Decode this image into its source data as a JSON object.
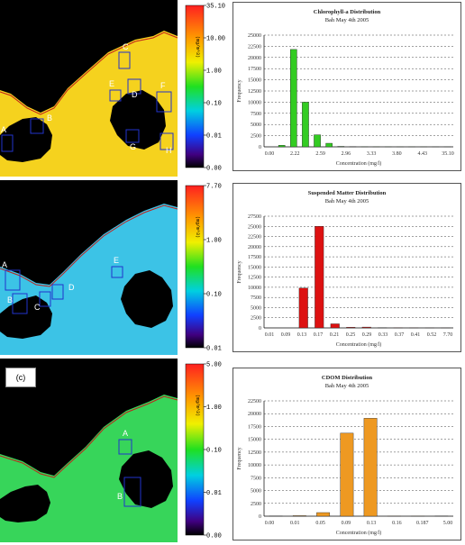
{
  "panel_label_c": "(c)",
  "maps": [
    {
      "fill": "#f5d21e",
      "colorbar_ticks": [
        "35.10",
        "10.00",
        "1.00",
        "0.10",
        "0.01",
        "0.00"
      ],
      "unit_label": "(mg/m^3)",
      "station_labels": [
        "A",
        "B",
        "C",
        "D",
        "E",
        "F",
        "G",
        "H"
      ]
    },
    {
      "fill": "#3cc3e6",
      "colorbar_ticks": [
        "7.70",
        "1.00",
        "0.10",
        "0.01"
      ],
      "unit_label": "(mg/m^3)",
      "station_labels": [
        "A",
        "B",
        "C",
        "D",
        "E"
      ]
    },
    {
      "fill": "#37d55a",
      "colorbar_ticks": [
        "5.00",
        "1.00",
        "0.10",
        "0.01",
        "0.00"
      ],
      "unit_label": "(mg/m^3)",
      "station_labels": [
        "A",
        "B"
      ]
    }
  ],
  "chart_data": [
    {
      "type": "bar",
      "title": "Chlorophyll-a Distribution",
      "subtitle": "Bah May 4th 2005",
      "xlabel": "Concentration (mg/l)",
      "ylabel": "Frequency",
      "color": "#33cc22",
      "ylim": [
        0,
        25000
      ],
      "yticks": [
        "25000",
        "22500",
        "20000",
        "17500",
        "15000",
        "12500",
        "10000",
        "7500",
        "5000",
        "2500",
        "0"
      ],
      "xtick_labels": [
        "0.00",
        "2.22",
        "2.59",
        "2.96",
        "3.33",
        "3.80",
        "4.43",
        "35.10"
      ],
      "values": [
        0,
        350,
        21800,
        10000,
        2700,
        800,
        100,
        50,
        30,
        20,
        15,
        10,
        10,
        10,
        5,
        5
      ]
    },
    {
      "type": "bar",
      "title": "Suspended Matter Distribution",
      "subtitle": "Bah May 4th 2005",
      "xlabel": "Concentration (mg/l)",
      "ylabel": "Frequency",
      "color": "#dd1111",
      "ylim": [
        0,
        27500
      ],
      "yticks": [
        "27500",
        "25000",
        "22500",
        "20000",
        "17500",
        "15000",
        "12500",
        "10000",
        "7500",
        "5000",
        "2500",
        "0"
      ],
      "xtick_labels": [
        "0.01",
        "0.09",
        "0.13",
        "0.17",
        "0.21",
        "0.25",
        "0.29",
        "0.33",
        "0.37",
        "0.41",
        "0.52",
        "7.70"
      ],
      "values": [
        0,
        0,
        9800,
        25000,
        1000,
        150,
        200,
        50,
        20,
        10,
        5,
        5
      ]
    },
    {
      "type": "bar",
      "title": "CDOM Distribution",
      "subtitle": "Bah May 4th 2005",
      "xlabel": "Concentration (mg/l)",
      "ylabel": "Frequency",
      "color": "#ee9922",
      "ylim": [
        0,
        22500
      ],
      "yticks": [
        "22500",
        "20000",
        "17500",
        "15000",
        "12500",
        "10000",
        "7500",
        "5000",
        "2500",
        "0"
      ],
      "xtick_labels": [
        "0.00",
        "0.01",
        "0.05",
        "0.09",
        "0.13",
        "0.16",
        "0.187",
        "5.00"
      ],
      "values": [
        50,
        100,
        700,
        16200,
        19100,
        20,
        10,
        50
      ]
    }
  ]
}
